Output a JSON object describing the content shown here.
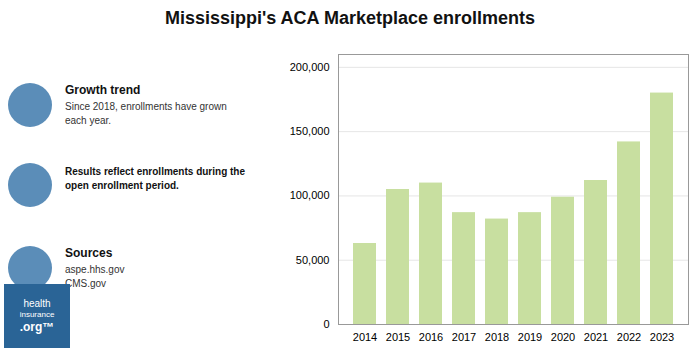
{
  "chart_data": {
    "type": "bar",
    "title": "Mississippi's ACA Marketplace enrollments",
    "categories": [
      "2014",
      "2015",
      "2016",
      "2017",
      "2018",
      "2019",
      "2020",
      "2021",
      "2022",
      "2023"
    ],
    "values": [
      63000,
      105000,
      110000,
      87000,
      82000,
      87000,
      99000,
      112000,
      142000,
      180000
    ],
    "color": "#c8dfa0",
    "ylim": [
      0,
      210000
    ],
    "yticks": [
      0,
      {
        "value": 50000,
        "label": "50,000"
      },
      {
        "value": 100000,
        "label": "100,000"
      },
      {
        "value": 150000,
        "label": "150,000"
      },
      {
        "value": 200000,
        "label": "200,000"
      }
    ],
    "grid": true,
    "annotations": [
      [
        "Growth trend",
        "Since 2018, enrollments have grown\neach year."
      ],
      [
        "Results reflect enrollments during the\nopen enrollment period."
      ],
      [
        "Sources",
        "aspe.hhs.gov\nCMS.gov"
      ],
      [
        "health",
        "insurance",
        ".org™"
      ]
    ]
  }
}
